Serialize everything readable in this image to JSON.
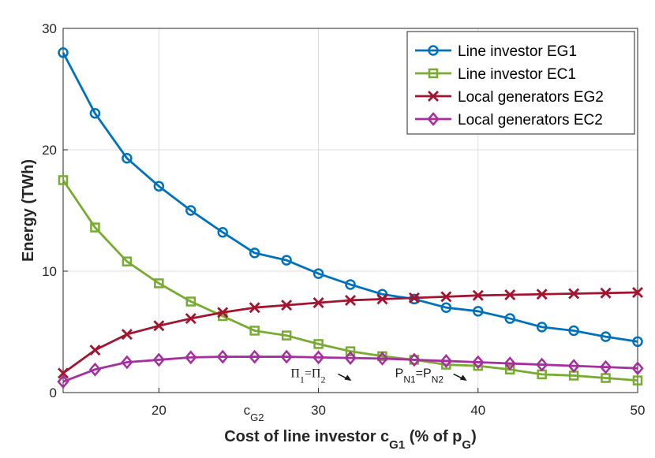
{
  "chart_data": {
    "type": "line",
    "xlabel": {
      "main": "Cost of line investor c",
      "sub": "G1",
      "rest": " (% of p",
      "sub2": "G",
      "end": ")"
    },
    "ylabel": "Energy (TWh)",
    "xlim": [
      14,
      50
    ],
    "ylim": [
      0,
      30
    ],
    "xticks": [
      20,
      30,
      40,
      50
    ],
    "yticks": [
      0,
      10,
      20,
      30
    ],
    "grid": true,
    "legend_position": "top-right",
    "x": [
      14,
      16,
      18,
      20,
      22,
      24,
      26,
      28,
      30,
      32,
      34,
      36,
      38,
      40,
      42,
      44,
      46,
      48,
      50
    ],
    "series": [
      {
        "name": "Line investor EG1",
        "color": "#0072BD",
        "marker": "circle",
        "values": [
          28.0,
          23.0,
          19.3,
          17.0,
          15.0,
          13.2,
          11.5,
          10.9,
          9.8,
          8.9,
          8.1,
          7.7,
          7.0,
          6.7,
          6.1,
          5.4,
          5.1,
          4.6,
          4.2
        ]
      },
      {
        "name": "Line investor EC1",
        "color": "#77AC30",
        "marker": "square",
        "values": [
          17.5,
          13.6,
          10.8,
          9.0,
          7.5,
          6.3,
          5.1,
          4.7,
          4.0,
          3.4,
          3.0,
          2.7,
          2.3,
          2.2,
          1.9,
          1.5,
          1.4,
          1.2,
          1.0
        ]
      },
      {
        "name": "Local generators EG2",
        "color": "#A2142F",
        "marker": "x",
        "values": [
          1.6,
          3.5,
          4.8,
          5.5,
          6.1,
          6.6,
          7.0,
          7.2,
          7.4,
          7.6,
          7.7,
          7.8,
          7.9,
          8.0,
          8.05,
          8.1,
          8.15,
          8.2,
          8.25
        ]
      },
      {
        "name": "Local generators EC2",
        "color": "#A62E9E",
        "marker": "diamond",
        "values": [
          0.9,
          1.9,
          2.5,
          2.7,
          2.9,
          2.95,
          2.95,
          2.95,
          2.9,
          2.85,
          2.8,
          2.7,
          2.6,
          2.5,
          2.4,
          2.3,
          2.2,
          2.1,
          2.0
        ]
      }
    ],
    "annotations": [
      {
        "id": "cg2",
        "main": "c",
        "sub": "G2",
        "x": 26,
        "y": 0
      },
      {
        "id": "pi",
        "text_parts": [
          "Π",
          "1",
          "=Π",
          "2"
        ],
        "x": 29,
        "y": 1.4
      },
      {
        "id": "pn",
        "text_parts": [
          "P",
          "N1",
          "=P",
          "N2"
        ],
        "x": 35,
        "y": 1.4
      }
    ]
  }
}
